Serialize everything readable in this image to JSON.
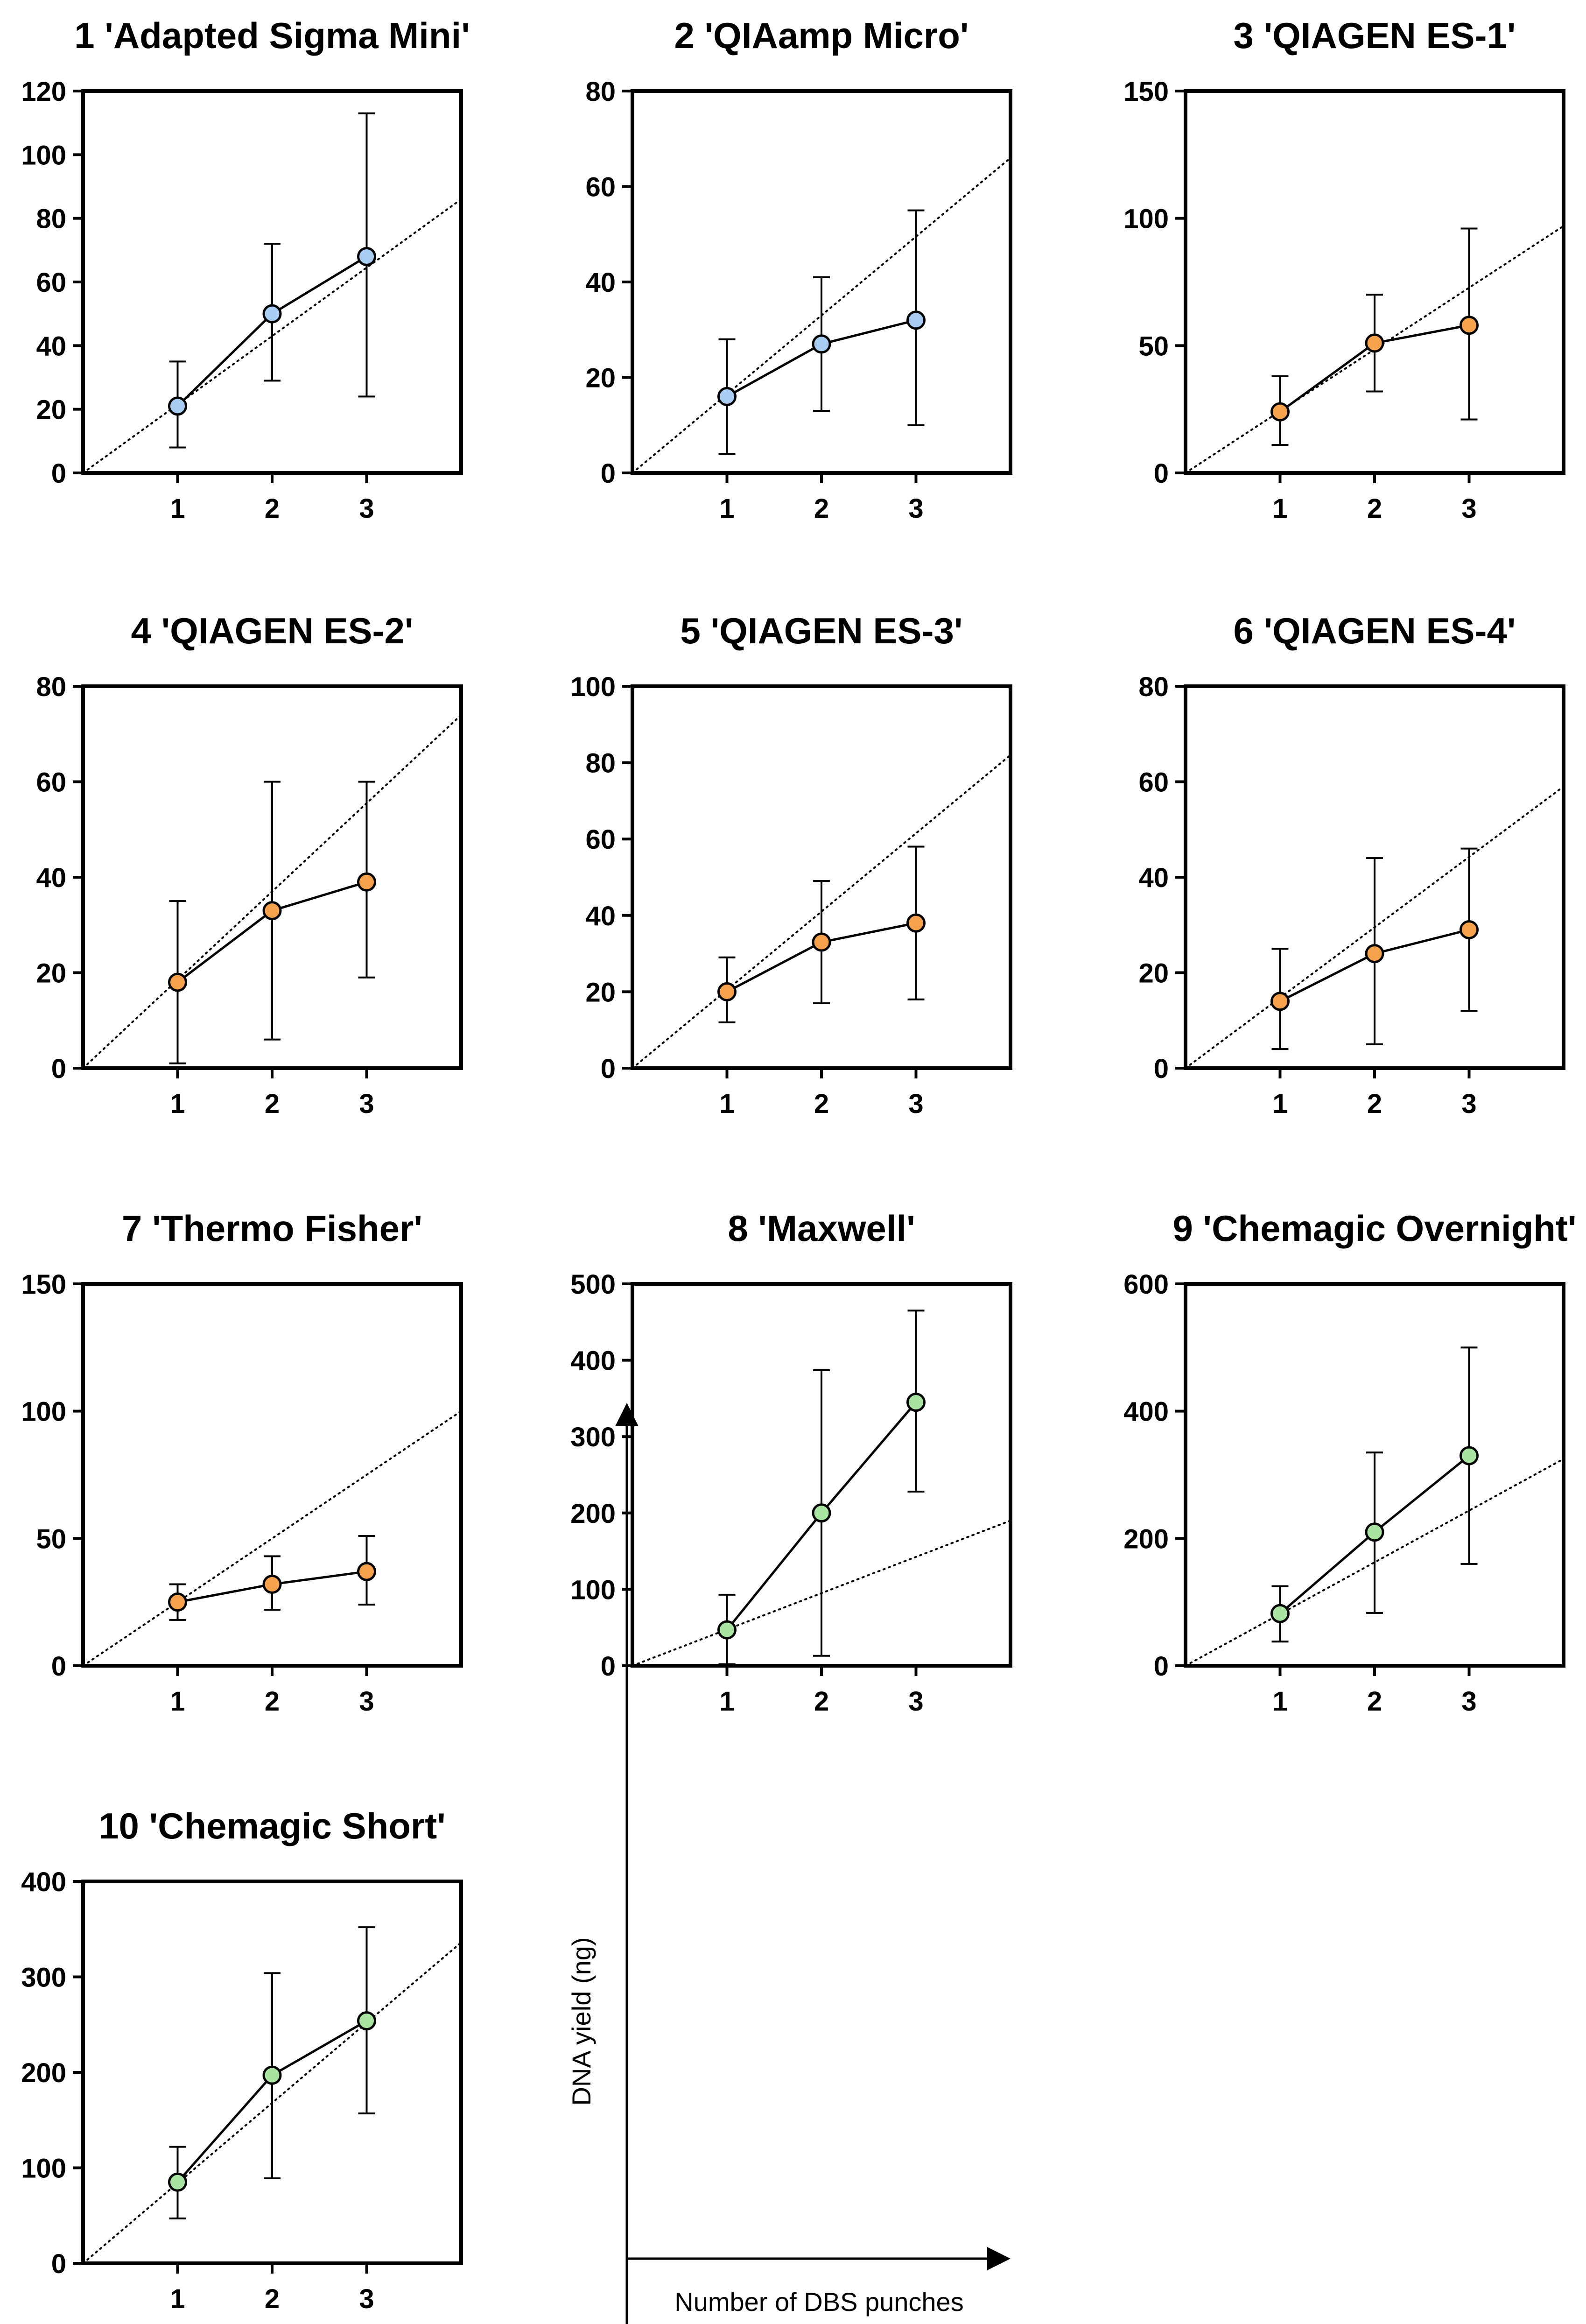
{
  "colors": {
    "blue": "#a9ccf3",
    "orange": "#f6a14b",
    "green": "#a9e4a3",
    "line": "#000000"
  },
  "chart_data": [
    {
      "type": "line",
      "title": "1 'Adapted Sigma Mini'",
      "categories": [
        "1",
        "2",
        "3"
      ],
      "values": [
        21,
        50,
        68
      ],
      "err_low": [
        8,
        29,
        24
      ],
      "err_high": [
        35,
        72,
        113
      ],
      "ylim": [
        0,
        120
      ],
      "yticks": [
        "0",
        "20",
        "40",
        "60",
        "80",
        "100",
        "120"
      ],
      "trend": [
        0,
        86
      ],
      "color": "blue",
      "xlabel": "",
      "ylabel": ""
    },
    {
      "type": "line",
      "title": "2 'QIAamp Micro'",
      "categories": [
        "1",
        "2",
        "3"
      ],
      "values": [
        16,
        27,
        32
      ],
      "err_low": [
        4,
        13,
        10
      ],
      "err_high": [
        28,
        41,
        55
      ],
      "ylim": [
        0,
        80
      ],
      "yticks": [
        "0",
        "20",
        "40",
        "60",
        "80"
      ],
      "trend": [
        0,
        66
      ],
      "color": "blue",
      "xlabel": "",
      "ylabel": ""
    },
    {
      "type": "line",
      "title": "3 'QIAGEN ES-1'",
      "categories": [
        "1",
        "2",
        "3"
      ],
      "values": [
        24,
        51,
        58
      ],
      "err_low": [
        11,
        32,
        21
      ],
      "err_high": [
        38,
        70,
        96
      ],
      "ylim": [
        0,
        150
      ],
      "yticks": [
        "0",
        "50",
        "100",
        "150"
      ],
      "trend": [
        0,
        97
      ],
      "color": "orange",
      "xlabel": "",
      "ylabel": ""
    },
    {
      "type": "line",
      "title": "4 'QIAGEN ES-2'",
      "categories": [
        "1",
        "2",
        "3"
      ],
      "values": [
        18,
        33,
        39
      ],
      "err_low": [
        1,
        6,
        19
      ],
      "err_high": [
        35,
        60,
        60
      ],
      "ylim": [
        0,
        80
      ],
      "yticks": [
        "0",
        "20",
        "40",
        "60",
        "80"
      ],
      "trend": [
        0,
        74
      ],
      "color": "orange",
      "xlabel": "",
      "ylabel": ""
    },
    {
      "type": "line",
      "title": "5 'QIAGEN ES-3'",
      "categories": [
        "1",
        "2",
        "3"
      ],
      "values": [
        20,
        33,
        38
      ],
      "err_low": [
        12,
        17,
        18
      ],
      "err_high": [
        29,
        49,
        58
      ],
      "ylim": [
        0,
        100
      ],
      "yticks": [
        "0",
        "20",
        "40",
        "60",
        "80",
        "100"
      ],
      "trend": [
        0,
        82
      ],
      "color": "orange",
      "xlabel": "",
      "ylabel": ""
    },
    {
      "type": "line",
      "title": "6 'QIAGEN ES-4'",
      "categories": [
        "1",
        "2",
        "3"
      ],
      "values": [
        14,
        24,
        29
      ],
      "err_low": [
        4,
        5,
        12
      ],
      "err_high": [
        25,
        44,
        46
      ],
      "ylim": [
        0,
        80
      ],
      "yticks": [
        "0",
        "20",
        "40",
        "60",
        "80"
      ],
      "trend": [
        0,
        59
      ],
      "color": "orange",
      "xlabel": "",
      "ylabel": ""
    },
    {
      "type": "line",
      "title": "7 'Thermo Fisher'",
      "categories": [
        "1",
        "2",
        "3"
      ],
      "values": [
        25,
        32,
        37
      ],
      "err_low": [
        18,
        22,
        24
      ],
      "err_high": [
        32,
        43,
        51
      ],
      "ylim": [
        0,
        150
      ],
      "yticks": [
        "0",
        "50",
        "100",
        "150"
      ],
      "trend": [
        0,
        100
      ],
      "color": "orange",
      "xlabel": "",
      "ylabel": ""
    },
    {
      "type": "line",
      "title": "8 'Maxwell'",
      "categories": [
        "1",
        "2",
        "3"
      ],
      "values": [
        47,
        200,
        345
      ],
      "err_low": [
        2,
        13,
        228
      ],
      "err_high": [
        93,
        387,
        465
      ],
      "ylim": [
        0,
        500
      ],
      "yticks": [
        "0",
        "100",
        "200",
        "300",
        "400",
        "500"
      ],
      "trend": [
        0,
        190
      ],
      "color": "green",
      "xlabel": "",
      "ylabel": ""
    },
    {
      "type": "line",
      "title": "9 'Chemagic Overnight'",
      "categories": [
        "1",
        "2",
        "3"
      ],
      "values": [
        82,
        210,
        330
      ],
      "err_low": [
        38,
        83,
        160
      ],
      "err_high": [
        125,
        335,
        500
      ],
      "ylim": [
        0,
        600
      ],
      "yticks": [
        "0",
        "200",
        "400",
        "600"
      ],
      "trend": [
        0,
        325
      ],
      "color": "green",
      "xlabel": "",
      "ylabel": ""
    },
    {
      "type": "line",
      "title": "10 'Chemagic Short'",
      "categories": [
        "1",
        "2",
        "3"
      ],
      "values": [
        85,
        197,
        254
      ],
      "err_low": [
        47,
        89,
        157
      ],
      "err_high": [
        122,
        304,
        352
      ],
      "ylim": [
        0,
        400
      ],
      "yticks": [
        "0",
        "100",
        "200",
        "300",
        "400"
      ],
      "trend": [
        0,
        336
      ],
      "color": "green",
      "xlabel": "",
      "ylabel": ""
    }
  ],
  "axis_legend": {
    "ylabel": "DNA yield (ng)",
    "xlabel": "Number of DBS punches"
  }
}
